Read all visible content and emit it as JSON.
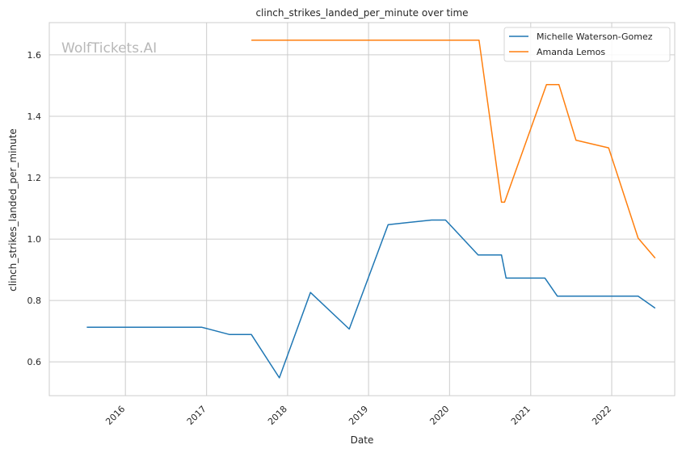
{
  "chart_data": {
    "type": "line",
    "title": "clinch_strikes_landed_per_minute over time",
    "xlabel": "Date",
    "ylabel": "clinch_strikes_landed_per_minute",
    "watermark": "WolfTickets.AI",
    "xlim": [
      "2015-01-23",
      "2022-10-12"
    ],
    "ylim": [
      0.49,
      1.705
    ],
    "x_ticks": [
      {
        "date": "2016-01-01",
        "label": "2016"
      },
      {
        "date": "2017-01-01",
        "label": "2017"
      },
      {
        "date": "2018-01-01",
        "label": "2018"
      },
      {
        "date": "2019-01-01",
        "label": "2019"
      },
      {
        "date": "2020-01-01",
        "label": "2020"
      },
      {
        "date": "2021-01-01",
        "label": "2021"
      },
      {
        "date": "2022-01-01",
        "label": "2022"
      }
    ],
    "y_ticks": [
      0.6,
      0.8,
      1.0,
      1.2,
      1.4,
      1.6
    ],
    "y_tick_labels": [
      "0.6",
      "0.8",
      "1.0",
      "1.2",
      "1.4",
      "1.6"
    ],
    "grid": true,
    "legend_position": "top-right",
    "series": [
      {
        "name": "Michelle Waterson-Gomez",
        "color": "#1f77b4",
        "points": [
          {
            "x": "2015-07-11",
            "y": 0.713
          },
          {
            "x": "2016-12-09",
            "y": 0.713
          },
          {
            "x": "2017-04-15",
            "y": 0.689
          },
          {
            "x": "2017-07-22",
            "y": 0.689
          },
          {
            "x": "2017-11-25",
            "y": 0.548
          },
          {
            "x": "2018-04-14",
            "y": 0.826
          },
          {
            "x": "2018-10-06",
            "y": 0.707
          },
          {
            "x": "2019-03-30",
            "y": 1.047
          },
          {
            "x": "2019-10-12",
            "y": 1.062
          },
          {
            "x": "2019-12-14",
            "y": 1.062
          },
          {
            "x": "2020-05-09",
            "y": 0.948
          },
          {
            "x": "2020-08-22",
            "y": 0.948
          },
          {
            "x": "2020-09-12",
            "y": 0.873
          },
          {
            "x": "2021-03-06",
            "y": 0.873
          },
          {
            "x": "2021-05-01",
            "y": 0.814
          },
          {
            "x": "2022-04-30",
            "y": 0.814
          },
          {
            "x": "2022-07-16",
            "y": 0.775
          }
        ]
      },
      {
        "name": "Amanda Lemos",
        "color": "#ff7f0e",
        "points": [
          {
            "x": "2017-07-22",
            "y": 1.648
          },
          {
            "x": "2020-05-13",
            "y": 1.648
          },
          {
            "x": "2020-08-22",
            "y": 1.12
          },
          {
            "x": "2020-09-05",
            "y": 1.12
          },
          {
            "x": "2021-03-13",
            "y": 1.503
          },
          {
            "x": "2021-05-08",
            "y": 1.503
          },
          {
            "x": "2021-07-24",
            "y": 1.322
          },
          {
            "x": "2021-12-18",
            "y": 1.297
          },
          {
            "x": "2022-04-30",
            "y": 1.003
          },
          {
            "x": "2022-07-16",
            "y": 0.938
          }
        ]
      }
    ]
  }
}
